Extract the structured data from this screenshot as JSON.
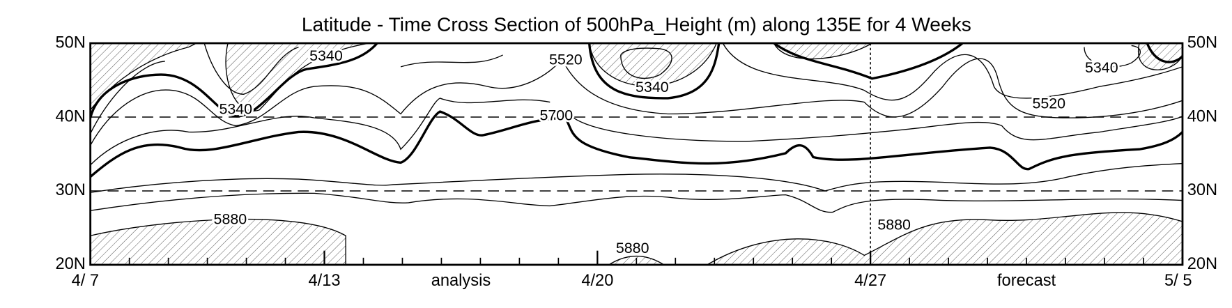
{
  "chart_data": {
    "type": "contour",
    "title": "Latitude - Time Cross Section of 500hPa_Height (m) along 135E for 4 Weeks",
    "xlim": [
      0,
      28
    ],
    "xticks": [
      {
        "value": 0,
        "label": "4/ 7"
      },
      {
        "value": 6,
        "label": "4/13"
      },
      {
        "value": 13,
        "label": "4/20"
      },
      {
        "value": 20,
        "label": "4/27"
      },
      {
        "value": 28,
        "label": "5/ 5"
      }
    ],
    "xminor_ticks": [
      0,
      1,
      2,
      3,
      4,
      5,
      6,
      7,
      8,
      9,
      10,
      11,
      12,
      13,
      14,
      15,
      16,
      17,
      18,
      19,
      20,
      21,
      22,
      23,
      24,
      25,
      26,
      27,
      28
    ],
    "period_labels": [
      "analysis",
      "forecast"
    ],
    "forecast_start": 20,
    "ylim": [
      20,
      50
    ],
    "yticks": [
      {
        "value": 20,
        "label": "20N"
      },
      {
        "value": 30,
        "label": "30N"
      },
      {
        "value": 40,
        "label": "40N"
      },
      {
        "value": 50,
        "label": "50N"
      }
    ],
    "grid": true,
    "contour_labels": [
      "5340",
      "5340",
      "5520",
      "5340",
      "5700",
      "5520",
      "5340",
      "5880",
      "5880",
      "5880"
    ]
  }
}
